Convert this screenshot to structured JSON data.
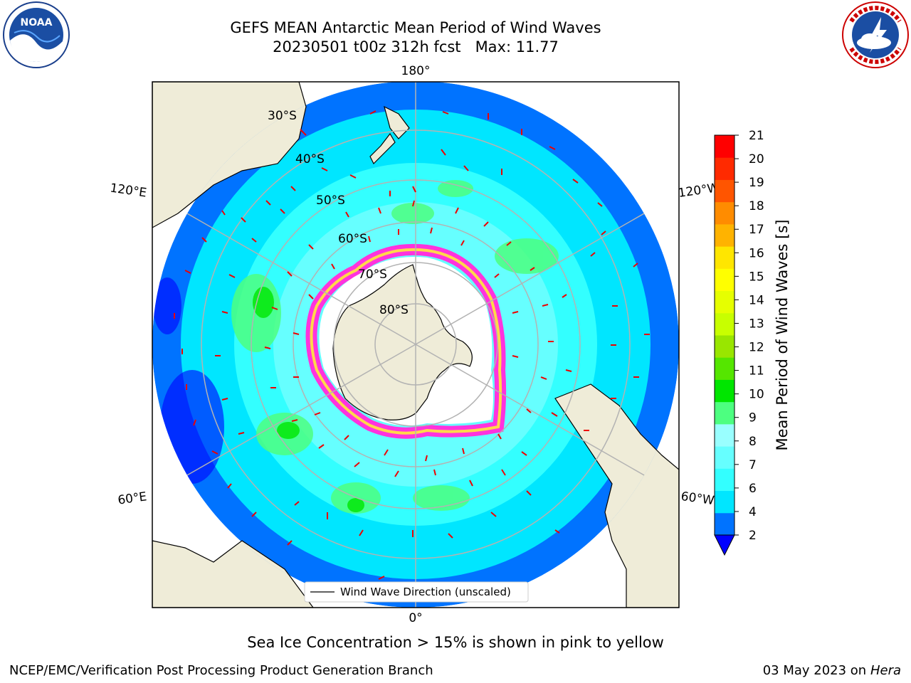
{
  "title": {
    "line1": "GEFS MEAN Antarctic Mean Period of Wind Waves",
    "line2": "20230501 t00z 312h fcst   Max: 11.77"
  },
  "logos": {
    "left": {
      "name": "noaa-logo",
      "text": "NOAA"
    },
    "right": {
      "name": "nws-logo",
      "text": "NATIONAL WEATHER SERVICE"
    }
  },
  "map": {
    "projection": "south-polar-stereographic",
    "longitude_labels": {
      "top": "180°",
      "bottom": "0°",
      "upper_left": "120°E",
      "upper_right": "120°W",
      "lower_left": "60°E",
      "lower_right": "60°W"
    },
    "latitude_labels": [
      "30°S",
      "40°S",
      "50°S",
      "60°S",
      "70°S",
      "80°S"
    ],
    "legend_label": "Wind Wave Direction (unscaled)",
    "colors": {
      "land": "#efecd8",
      "ice_pink": "#ff33dd",
      "ice_yellow": "#ffd84a",
      "arrow": "#ee0000",
      "grid": "#b3b3b3"
    }
  },
  "colorbar": {
    "label": "Mean Period of Wind Waves [s]",
    "ticks": [
      "2",
      "4",
      "6",
      "7",
      "8",
      "9",
      "10",
      "11",
      "12",
      "13",
      "14",
      "15",
      "16",
      "17",
      "18",
      "19",
      "20",
      "21"
    ],
    "colors": [
      "#0073ff",
      "#00e6ff",
      "#33ffff",
      "#66ffff",
      "#99ffff",
      "#4dff80",
      "#00e600",
      "#55e600",
      "#99e600",
      "#c8ff00",
      "#e6ff00",
      "#ffff00",
      "#ffe600",
      "#ffb300",
      "#ff8c00",
      "#ff5500",
      "#ff2a00",
      "#ff0000"
    ],
    "extend_color": "#0000ff"
  },
  "footer": {
    "note": "Sea Ice Concentration > 15% is shown in pink to yellow",
    "credit": "NCEP/EMC/Verification Post Processing Product Generation Branch",
    "date": "03 May 2023 on",
    "machine": "Hera"
  }
}
